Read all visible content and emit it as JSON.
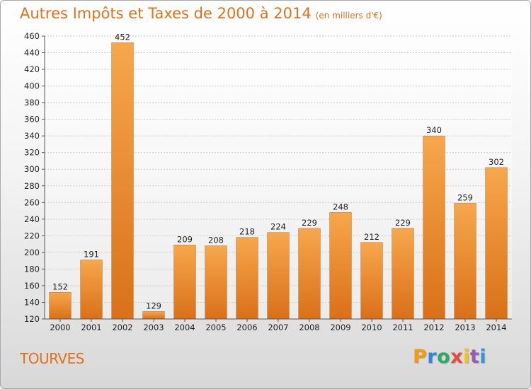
{
  "title": "Autres Impôts et Taxes de 2000 à 2014",
  "title_unit": "(en milliers d'€)",
  "footer_label": "TOURVES",
  "logo": {
    "letters": [
      "P",
      "r",
      "o",
      "x",
      "i",
      "t",
      "i"
    ],
    "colors": [
      "#f39c12",
      "#2e86de",
      "#27ae60",
      "#e74c3c",
      "#f1c40f",
      "#9b59b6",
      "#3498db"
    ]
  },
  "colors": {
    "bar_top": "#f7a74c",
    "bar_bottom": "#d97019",
    "title": "#e0711d",
    "grid": "#cccccc"
  },
  "chart_data": {
    "type": "bar",
    "categories": [
      "2000",
      "2001",
      "2002",
      "2003",
      "2004",
      "2005",
      "2006",
      "2007",
      "2008",
      "2009",
      "2010",
      "2011",
      "2012",
      "2013",
      "2014"
    ],
    "values": [
      152,
      191,
      452,
      129,
      209,
      208,
      218,
      224,
      229,
      248,
      212,
      229,
      340,
      259,
      302
    ],
    "ylim": [
      120,
      460
    ],
    "yticks": [
      120,
      140,
      160,
      180,
      200,
      220,
      240,
      260,
      280,
      300,
      320,
      340,
      360,
      380,
      400,
      420,
      440,
      460
    ],
    "grid": true,
    "legend": "none"
  }
}
